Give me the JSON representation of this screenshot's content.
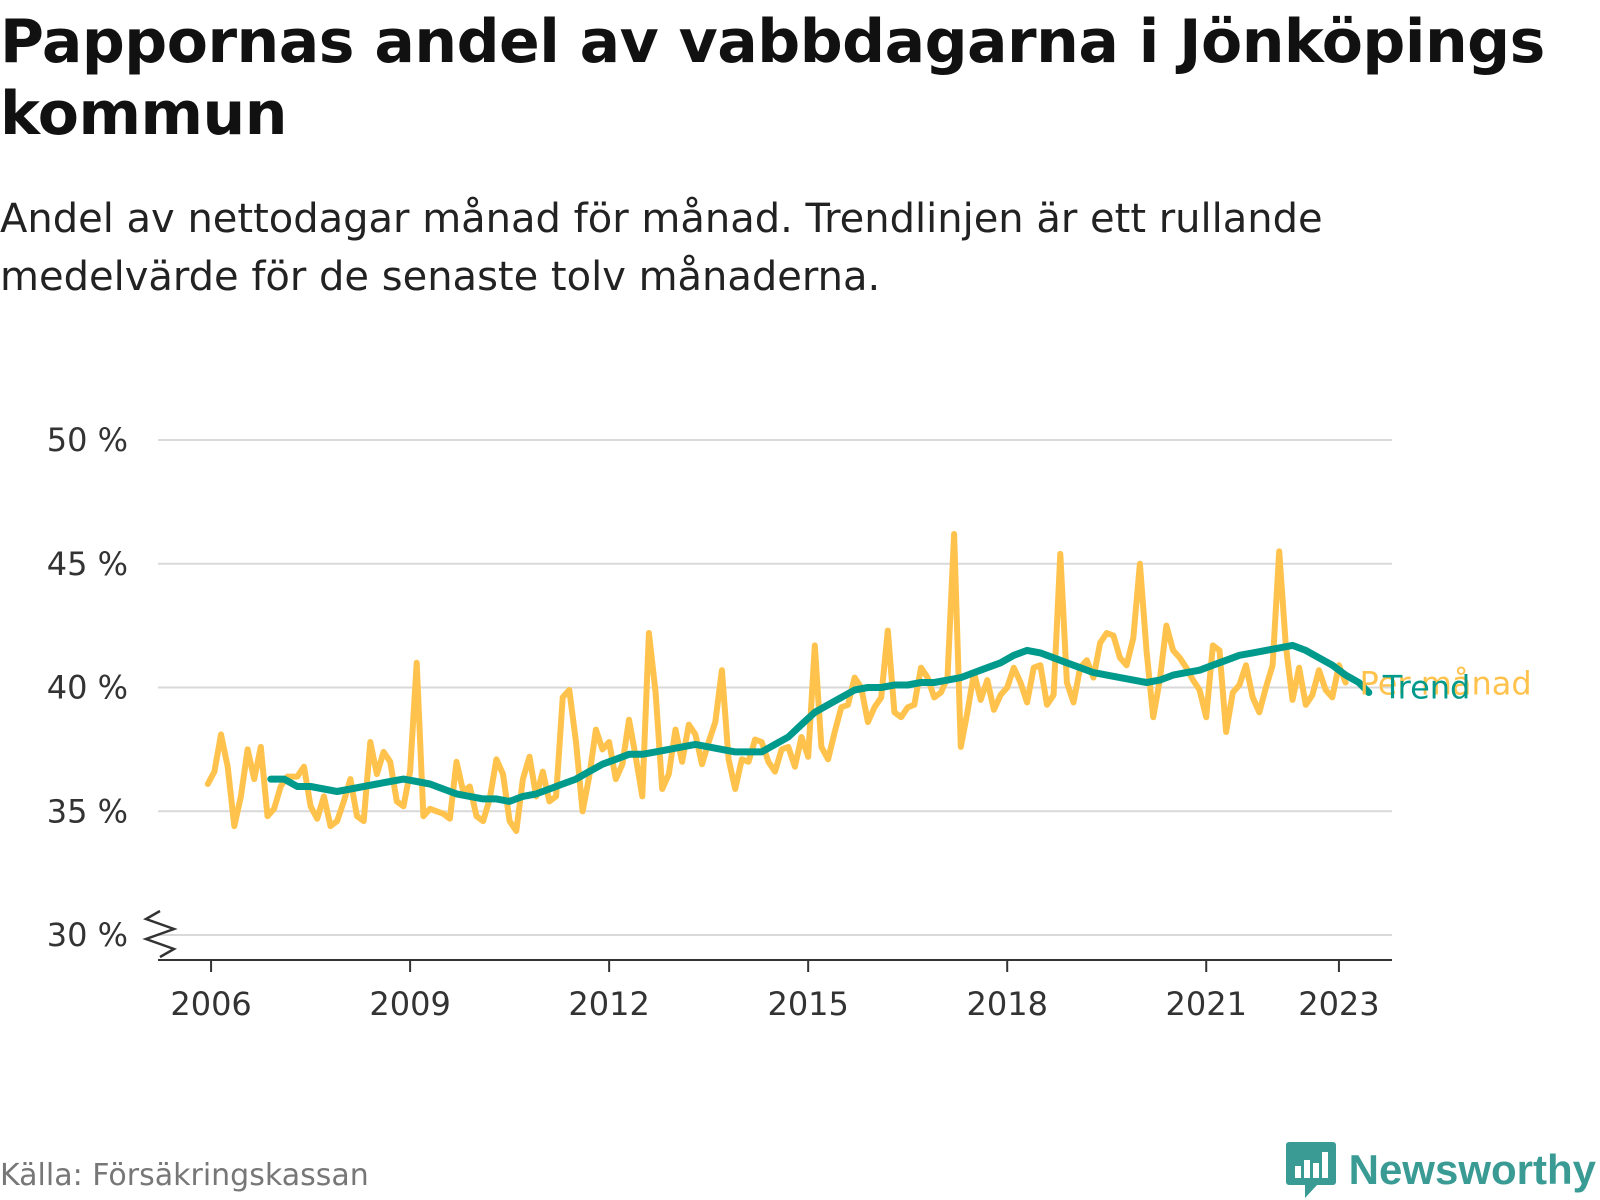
{
  "title": "Pappornas andel av vabbdagarna i Jönköpings kommun",
  "subtitle": "Andel av nettodagar månad för månad. Trendlinjen är ett rullande medelvärde för de senaste tolv månaderna.",
  "source": "Källa: Försäkringskassan",
  "brand": {
    "name": "Newsworthy",
    "logo_icon": "bar-chart-speech-bubble-icon",
    "color": "#3a9b94"
  },
  "chart_data": {
    "type": "line",
    "y_unit": "%",
    "ylim": [
      30,
      50
    ],
    "y_ticks": [
      {
        "value": 30,
        "label": "30 %"
      },
      {
        "value": 35,
        "label": "35 %"
      },
      {
        "value": 40,
        "label": "40 %"
      },
      {
        "value": 45,
        "label": "45 %"
      },
      {
        "value": 50,
        "label": "50 %"
      }
    ],
    "xlim": [
      2005.2,
      2023.8
    ],
    "x_ticks": [
      {
        "value": 2006.0,
        "label": "2006"
      },
      {
        "value": 2009.0,
        "label": "2009"
      },
      {
        "value": 2012.0,
        "label": "2012"
      },
      {
        "value": 2015.0,
        "label": "2015"
      },
      {
        "value": 2018.0,
        "label": "2018"
      },
      {
        "value": 2021.0,
        "label": "2021"
      },
      {
        "value": 2023.0,
        "label": "2023"
      }
    ],
    "y_axis_break": true,
    "grid": "horizontal",
    "series": [
      {
        "name": "Per månad",
        "color": "#ffc34d",
        "points": [
          [
            2005.95,
            36.1
          ],
          [
            2006.05,
            36.6
          ],
          [
            2006.15,
            38.1
          ],
          [
            2006.25,
            36.8
          ],
          [
            2006.35,
            34.4
          ],
          [
            2006.45,
            35.6
          ],
          [
            2006.55,
            37.5
          ],
          [
            2006.65,
            36.3
          ],
          [
            2006.75,
            37.6
          ],
          [
            2006.85,
            34.8
          ],
          [
            2006.95,
            35.1
          ],
          [
            2007.05,
            36.0
          ],
          [
            2007.15,
            36.4
          ],
          [
            2007.3,
            36.4
          ],
          [
            2007.4,
            36.8
          ],
          [
            2007.5,
            35.2
          ],
          [
            2007.6,
            34.7
          ],
          [
            2007.7,
            35.6
          ],
          [
            2007.8,
            34.4
          ],
          [
            2007.9,
            34.6
          ],
          [
            2008.0,
            35.4
          ],
          [
            2008.1,
            36.3
          ],
          [
            2008.2,
            34.8
          ],
          [
            2008.3,
            34.6
          ],
          [
            2008.4,
            37.8
          ],
          [
            2008.5,
            36.5
          ],
          [
            2008.6,
            37.4
          ],
          [
            2008.7,
            37.0
          ],
          [
            2008.8,
            35.4
          ],
          [
            2008.9,
            35.2
          ],
          [
            2009.0,
            36.6
          ],
          [
            2009.1,
            41.0
          ],
          [
            2009.2,
            34.8
          ],
          [
            2009.3,
            35.1
          ],
          [
            2009.4,
            35.0
          ],
          [
            2009.5,
            34.9
          ],
          [
            2009.6,
            34.7
          ],
          [
            2009.7,
            37.0
          ],
          [
            2009.8,
            35.8
          ],
          [
            2009.9,
            36.0
          ],
          [
            2010.0,
            34.8
          ],
          [
            2010.1,
            34.6
          ],
          [
            2010.2,
            35.5
          ],
          [
            2010.3,
            37.1
          ],
          [
            2010.4,
            36.5
          ],
          [
            2010.5,
            34.6
          ],
          [
            2010.6,
            34.2
          ],
          [
            2010.7,
            36.3
          ],
          [
            2010.8,
            37.2
          ],
          [
            2010.9,
            35.6
          ],
          [
            2011.0,
            36.6
          ],
          [
            2011.1,
            35.4
          ],
          [
            2011.2,
            35.6
          ],
          [
            2011.3,
            39.6
          ],
          [
            2011.4,
            39.9
          ],
          [
            2011.5,
            37.8
          ],
          [
            2011.6,
            35.0
          ],
          [
            2011.7,
            36.4
          ],
          [
            2011.8,
            38.3
          ],
          [
            2011.9,
            37.5
          ],
          [
            2012.0,
            37.8
          ],
          [
            2012.1,
            36.3
          ],
          [
            2012.2,
            36.9
          ],
          [
            2012.3,
            38.7
          ],
          [
            2012.4,
            37.2
          ],
          [
            2012.5,
            35.6
          ],
          [
            2012.6,
            42.2
          ],
          [
            2012.7,
            39.8
          ],
          [
            2012.8,
            35.9
          ],
          [
            2012.9,
            36.5
          ],
          [
            2013.0,
            38.3
          ],
          [
            2013.1,
            37.0
          ],
          [
            2013.2,
            38.5
          ],
          [
            2013.3,
            38.1
          ],
          [
            2013.4,
            36.9
          ],
          [
            2013.5,
            37.8
          ],
          [
            2013.6,
            38.6
          ],
          [
            2013.7,
            40.7
          ],
          [
            2013.8,
            37.1
          ],
          [
            2013.9,
            35.9
          ],
          [
            2014.0,
            37.1
          ],
          [
            2014.1,
            37.0
          ],
          [
            2014.2,
            37.9
          ],
          [
            2014.3,
            37.8
          ],
          [
            2014.4,
            37.0
          ],
          [
            2014.5,
            36.6
          ],
          [
            2014.6,
            37.5
          ],
          [
            2014.7,
            37.6
          ],
          [
            2014.8,
            36.8
          ],
          [
            2014.9,
            38.0
          ],
          [
            2015.0,
            37.2
          ],
          [
            2015.1,
            41.7
          ],
          [
            2015.2,
            37.6
          ],
          [
            2015.3,
            37.1
          ],
          [
            2015.4,
            38.2
          ],
          [
            2015.5,
            39.2
          ],
          [
            2015.6,
            39.3
          ],
          [
            2015.7,
            40.4
          ],
          [
            2015.8,
            40.0
          ],
          [
            2015.9,
            38.6
          ],
          [
            2016.0,
            39.2
          ],
          [
            2016.1,
            39.6
          ],
          [
            2016.2,
            42.3
          ],
          [
            2016.3,
            39.0
          ],
          [
            2016.4,
            38.8
          ],
          [
            2016.5,
            39.2
          ],
          [
            2016.6,
            39.3
          ],
          [
            2016.7,
            40.8
          ],
          [
            2016.8,
            40.4
          ],
          [
            2016.9,
            39.6
          ],
          [
            2017.0,
            39.8
          ],
          [
            2017.1,
            40.4
          ],
          [
            2017.2,
            46.2
          ],
          [
            2017.3,
            37.6
          ],
          [
            2017.4,
            39.0
          ],
          [
            2017.5,
            40.6
          ],
          [
            2017.6,
            39.5
          ],
          [
            2017.7,
            40.3
          ],
          [
            2017.8,
            39.1
          ],
          [
            2017.9,
            39.7
          ],
          [
            2018.0,
            40.0
          ],
          [
            2018.1,
            40.8
          ],
          [
            2018.2,
            40.2
          ],
          [
            2018.3,
            39.4
          ],
          [
            2018.4,
            40.8
          ],
          [
            2018.5,
            40.9
          ],
          [
            2018.6,
            39.3
          ],
          [
            2018.7,
            39.7
          ],
          [
            2018.8,
            45.4
          ],
          [
            2018.9,
            40.2
          ],
          [
            2019.0,
            39.4
          ],
          [
            2019.1,
            40.8
          ],
          [
            2019.2,
            41.1
          ],
          [
            2019.3,
            40.4
          ],
          [
            2019.4,
            41.8
          ],
          [
            2019.5,
            42.2
          ],
          [
            2019.6,
            42.1
          ],
          [
            2019.7,
            41.2
          ],
          [
            2019.8,
            40.9
          ],
          [
            2019.9,
            42.0
          ],
          [
            2020.0,
            45.0
          ],
          [
            2020.1,
            41.5
          ],
          [
            2020.2,
            38.8
          ],
          [
            2020.3,
            40.3
          ],
          [
            2020.4,
            42.5
          ],
          [
            2020.5,
            41.5
          ],
          [
            2020.6,
            41.2
          ],
          [
            2020.7,
            40.8
          ],
          [
            2020.8,
            40.3
          ],
          [
            2020.9,
            39.9
          ],
          [
            2021.0,
            38.8
          ],
          [
            2021.1,
            41.7
          ],
          [
            2021.2,
            41.5
          ],
          [
            2021.3,
            38.2
          ],
          [
            2021.4,
            39.8
          ],
          [
            2021.5,
            40.1
          ],
          [
            2021.6,
            40.9
          ],
          [
            2021.7,
            39.6
          ],
          [
            2021.8,
            39.0
          ],
          [
            2021.9,
            40.0
          ],
          [
            2022.0,
            40.9
          ],
          [
            2022.1,
            45.5
          ],
          [
            2022.2,
            41.7
          ],
          [
            2022.3,
            39.5
          ],
          [
            2022.4,
            40.8
          ],
          [
            2022.5,
            39.3
          ],
          [
            2022.6,
            39.7
          ],
          [
            2022.7,
            40.7
          ],
          [
            2022.8,
            39.9
          ],
          [
            2022.9,
            39.6
          ],
          [
            2023.0,
            40.9
          ],
          [
            2023.1,
            40.2
          ]
        ]
      },
      {
        "name": "Trend",
        "color": "#009a8c",
        "points": [
          [
            2006.9,
            36.3
          ],
          [
            2007.1,
            36.3
          ],
          [
            2007.3,
            36.0
          ],
          [
            2007.5,
            36.0
          ],
          [
            2007.7,
            35.9
          ],
          [
            2007.9,
            35.8
          ],
          [
            2008.1,
            35.9
          ],
          [
            2008.3,
            36.0
          ],
          [
            2008.5,
            36.1
          ],
          [
            2008.7,
            36.2
          ],
          [
            2008.9,
            36.3
          ],
          [
            2009.1,
            36.2
          ],
          [
            2009.3,
            36.1
          ],
          [
            2009.5,
            35.9
          ],
          [
            2009.7,
            35.7
          ],
          [
            2009.9,
            35.6
          ],
          [
            2010.1,
            35.5
          ],
          [
            2010.3,
            35.5
          ],
          [
            2010.5,
            35.4
          ],
          [
            2010.7,
            35.6
          ],
          [
            2010.9,
            35.7
          ],
          [
            2011.1,
            35.9
          ],
          [
            2011.3,
            36.1
          ],
          [
            2011.5,
            36.3
          ],
          [
            2011.7,
            36.6
          ],
          [
            2011.9,
            36.9
          ],
          [
            2012.1,
            37.1
          ],
          [
            2012.3,
            37.3
          ],
          [
            2012.5,
            37.3
          ],
          [
            2012.7,
            37.4
          ],
          [
            2012.9,
            37.5
          ],
          [
            2013.1,
            37.6
          ],
          [
            2013.3,
            37.7
          ],
          [
            2013.5,
            37.6
          ],
          [
            2013.7,
            37.5
          ],
          [
            2013.9,
            37.4
          ],
          [
            2014.1,
            37.4
          ],
          [
            2014.3,
            37.4
          ],
          [
            2014.5,
            37.7
          ],
          [
            2014.7,
            38.0
          ],
          [
            2014.9,
            38.5
          ],
          [
            2015.1,
            39.0
          ],
          [
            2015.3,
            39.3
          ],
          [
            2015.5,
            39.6
          ],
          [
            2015.7,
            39.9
          ],
          [
            2015.9,
            40.0
          ],
          [
            2016.1,
            40.0
          ],
          [
            2016.3,
            40.1
          ],
          [
            2016.5,
            40.1
          ],
          [
            2016.7,
            40.2
          ],
          [
            2016.9,
            40.2
          ],
          [
            2017.1,
            40.3
          ],
          [
            2017.3,
            40.4
          ],
          [
            2017.5,
            40.6
          ],
          [
            2017.7,
            40.8
          ],
          [
            2017.9,
            41.0
          ],
          [
            2018.1,
            41.3
          ],
          [
            2018.3,
            41.5
          ],
          [
            2018.5,
            41.4
          ],
          [
            2018.7,
            41.2
          ],
          [
            2018.9,
            41.0
          ],
          [
            2019.1,
            40.8
          ],
          [
            2019.3,
            40.6
          ],
          [
            2019.5,
            40.5
          ],
          [
            2019.7,
            40.4
          ],
          [
            2019.9,
            40.3
          ],
          [
            2020.1,
            40.2
          ],
          [
            2020.3,
            40.3
          ],
          [
            2020.5,
            40.5
          ],
          [
            2020.7,
            40.6
          ],
          [
            2020.9,
            40.7
          ],
          [
            2021.1,
            40.9
          ],
          [
            2021.3,
            41.1
          ],
          [
            2021.5,
            41.3
          ],
          [
            2021.7,
            41.4
          ],
          [
            2021.9,
            41.5
          ],
          [
            2022.1,
            41.6
          ],
          [
            2022.3,
            41.7
          ],
          [
            2022.5,
            41.5
          ],
          [
            2022.7,
            41.2
          ],
          [
            2022.9,
            40.9
          ],
          [
            2023.1,
            40.5
          ],
          [
            2023.3,
            40.2
          ],
          [
            2023.45,
            39.8
          ]
        ]
      }
    ]
  }
}
